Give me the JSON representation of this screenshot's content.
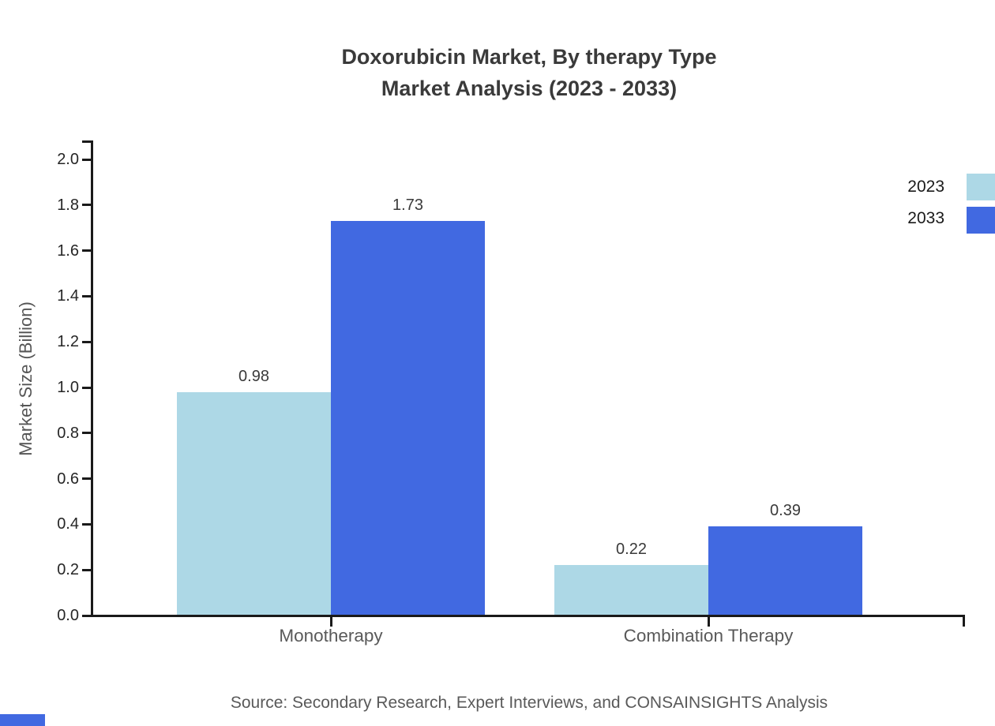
{
  "title": {
    "line1": "Doxorubicin Market, By therapy Type",
    "line2": "Market Analysis (2023 - 2033)"
  },
  "legend": {
    "position": "right-top-outside",
    "items": [
      {
        "label": "2023",
        "color": "#ADD8E6"
      },
      {
        "label": "2033",
        "color": "#4169E1"
      }
    ]
  },
  "source": "Source: Secondary Research, Expert Interviews, and CONSAINSIGHTS Analysis",
  "colors": {
    "series_2023": "#ADD8E6",
    "series_2033": "#4169E1",
    "axis": "#1a1a1a",
    "title_text": "#3a3a3a",
    "muted_text": "#595959",
    "tick_text": "#262626",
    "brand_bar": "#4169E1"
  },
  "chart_data": {
    "type": "bar",
    "title": "Doxorubicin Market, By therapy Type Market Analysis (2023 - 2033)",
    "categories": [
      "Monotherapy",
      "Combination Therapy"
    ],
    "series": [
      {
        "name": "2023",
        "color": "#ADD8E6",
        "values": [
          0.98,
          0.22
        ]
      },
      {
        "name": "2033",
        "color": "#4169E1",
        "values": [
          1.73,
          0.39
        ]
      }
    ],
    "value_labels": [
      [
        "0.98",
        "0.22"
      ],
      [
        "1.73",
        "0.39"
      ]
    ],
    "xlabel": "",
    "ylabel": "Market Size (Billion)",
    "ylim": [
      0.0,
      2.0
    ],
    "ytick_step": 0.2,
    "ytick_labels": [
      "0.0",
      "0.2",
      "0.4",
      "0.6",
      "0.8",
      "1.0",
      "1.2",
      "1.4",
      "1.6",
      "1.8",
      "2.0"
    ],
    "grid": false,
    "legend_position": "right-top-outside"
  }
}
